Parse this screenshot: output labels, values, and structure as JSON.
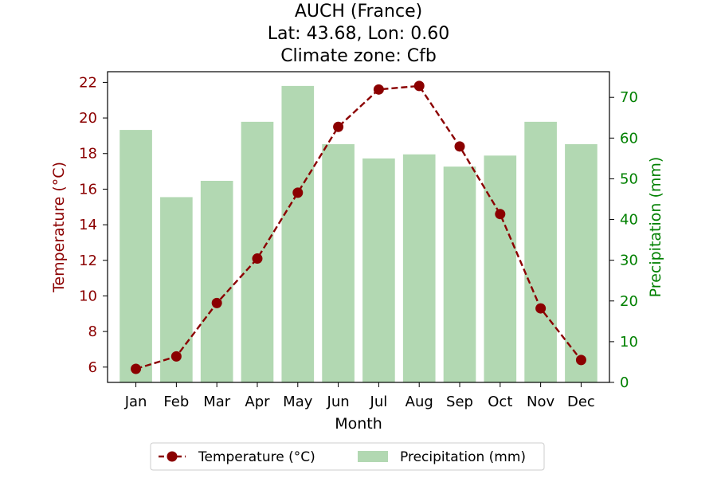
{
  "chart_data": {
    "type": "bar+line",
    "title_lines": [
      "AUCH (France)",
      "Lat: 43.68, Lon: 0.60",
      "Climate zone: Cfb"
    ],
    "categories": [
      "Jan",
      "Feb",
      "Mar",
      "Apr",
      "May",
      "Jun",
      "Jul",
      "Aug",
      "Sep",
      "Oct",
      "Nov",
      "Dec"
    ],
    "xlabel": "Month",
    "series": [
      {
        "name": "Temperature (°C)",
        "kind": "line",
        "axis": "left",
        "color": "#8b0000",
        "line_style": "dashed",
        "marker": "circle",
        "values": [
          5.9,
          6.6,
          9.6,
          12.1,
          15.8,
          19.5,
          21.6,
          21.8,
          18.4,
          14.6,
          9.3,
          6.4
        ]
      },
      {
        "name": "Precipitation (mm)",
        "kind": "bar",
        "axis": "right",
        "color": "#b2d8b2",
        "values": [
          62,
          45.5,
          49.5,
          64,
          72.8,
          58.5,
          55,
          56,
          53,
          55.7,
          64,
          58.5
        ]
      }
    ],
    "y_left": {
      "label": "Temperature (°C)",
      "color": "#8b0000",
      "range": [
        5.14,
        22.6
      ],
      "ticks": [
        "6",
        "8",
        "10",
        "12",
        "14",
        "16",
        "18",
        "20",
        "22"
      ]
    },
    "y_right": {
      "label": "Precipitation (mm)",
      "color": "#008000",
      "range": [
        0,
        76.3
      ],
      "ticks": [
        "0",
        "10",
        "20",
        "30",
        "40",
        "50",
        "60",
        "70"
      ]
    },
    "grid": false,
    "legend_placement": "bottom-center"
  }
}
